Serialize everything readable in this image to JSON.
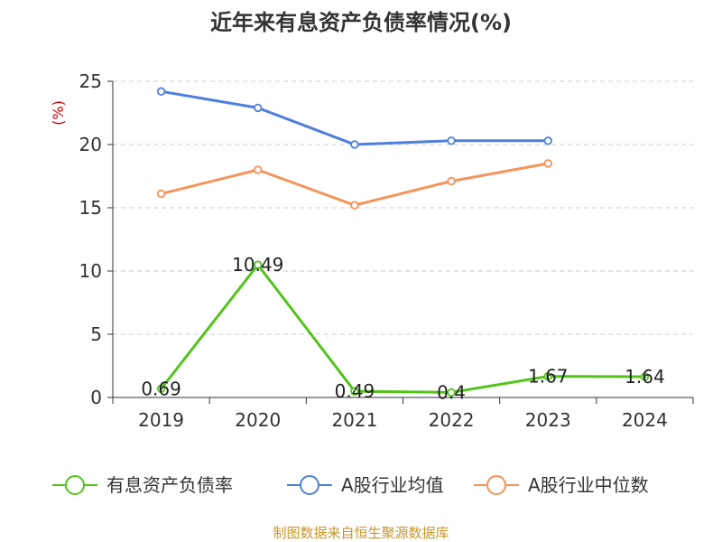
{
  "chart_data": {
    "type": "line",
    "title": "近年来有息资产负债率情况(%)",
    "ylabel": "(%)",
    "xlabel": "",
    "categories": [
      "2019",
      "2020",
      "2021",
      "2022",
      "2023",
      "2024"
    ],
    "ylim": [
      0,
      25
    ],
    "yticks": [
      0,
      5,
      10,
      15,
      20,
      25
    ],
    "grid": true,
    "legend_position": "bottom",
    "series": [
      {
        "name": "有息资产负债率",
        "color": "#52c41a",
        "values": [
          0.69,
          10.49,
          0.49,
          0.4,
          1.67,
          1.64
        ],
        "data_labels": [
          "0.69",
          "10.49",
          "0.49",
          "0.4",
          "1.67",
          "1.64"
        ]
      },
      {
        "name": "A股行业均值",
        "color": "#4e7fdc",
        "values": [
          24.2,
          22.9,
          20.0,
          20.3,
          20.3,
          null
        ]
      },
      {
        "name": "A股行业中位数",
        "color": "#f59359",
        "values": [
          16.1,
          18.0,
          15.2,
          17.1,
          18.5,
          null
        ]
      }
    ],
    "source": "制图数据来自恒生聚源数据库"
  }
}
